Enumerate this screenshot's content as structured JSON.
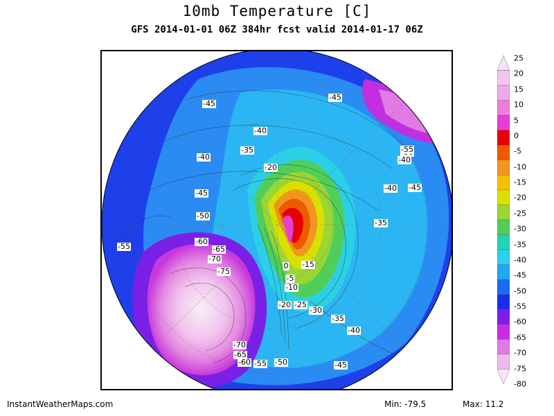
{
  "title": "10mb Temperature [C]",
  "subtitle": "GFS 2014-01-01 06Z 384hr fcst valid 2014-01-17 06Z",
  "footer": {
    "site": "InstantWeatherMaps.com",
    "min_label": "Min:",
    "min_value": "-79.5",
    "max_label": "Max:",
    "max_value": "11.2"
  },
  "colorbar": {
    "ticks": [
      "25",
      "20",
      "15",
      "10",
      "5",
      "0",
      "-5",
      "-10",
      "-15",
      "-20",
      "-25",
      "-30",
      "-35",
      "-40",
      "-45",
      "-50",
      "-55",
      "-60",
      "-65",
      "-70",
      "-75",
      "-80"
    ],
    "colors": [
      "#f8e2f5",
      "#f3c4ee",
      "#efa8e8",
      "#ea7fde",
      "#e63fd6",
      "#e60000",
      "#ee5a00",
      "#f3961d",
      "#f5c000",
      "#d9e000",
      "#9ad634",
      "#4fcf5a",
      "#22d3b4",
      "#2ccff0",
      "#22a7f3",
      "#1a6cf5",
      "#1a2de9",
      "#7a1fe6",
      "#c62de0",
      "#e27ae5",
      "#f1b7ef",
      "#f9e7f8"
    ]
  },
  "contour_labels": [
    {
      "text": "-45"
    },
    {
      "text": "-45"
    },
    {
      "text": "-40"
    },
    {
      "text": "-35"
    },
    {
      "text": "-40"
    },
    {
      "text": "-20"
    },
    {
      "text": "-45"
    },
    {
      "text": "-50"
    },
    {
      "text": "-55"
    },
    {
      "text": "-60"
    },
    {
      "text": "-65"
    },
    {
      "text": "-70"
    },
    {
      "text": "-75"
    },
    {
      "text": "-70"
    },
    {
      "text": "-65"
    },
    {
      "text": "-60"
    },
    {
      "text": "-55"
    },
    {
      "text": "-50"
    },
    {
      "text": "-45"
    },
    {
      "text": "-40"
    },
    {
      "text": "-35"
    },
    {
      "text": "-30"
    },
    {
      "text": "-20"
    },
    {
      "text": "-25"
    },
    {
      "text": "-10"
    },
    {
      "text": "-5"
    },
    {
      "text": "0"
    },
    {
      "text": "-15"
    },
    {
      "text": "-35"
    },
    {
      "text": "-40"
    },
    {
      "text": "-45"
    },
    {
      "text": "-40"
    },
    {
      "text": "-50"
    },
    {
      "text": "-55"
    }
  ]
}
